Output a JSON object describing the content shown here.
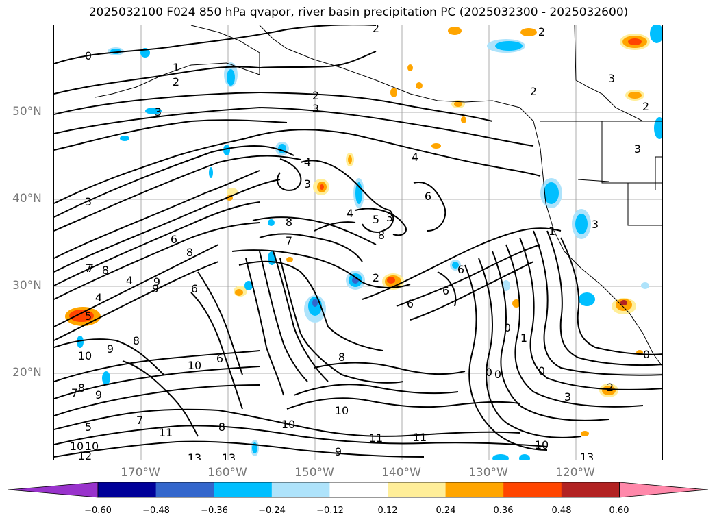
{
  "title": "2025032100 F024 850 hPa qvapor, river basin precipitation PC (2025032300 - 2025032600)",
  "lat_labels": [
    "50°N",
    "40°N",
    "30°N",
    "20°N"
  ],
  "lon_labels": [
    "170°W",
    "160°W",
    "150°W",
    "140°W",
    "130°W",
    "120°W"
  ],
  "colorbar": {
    "colors": [
      "#9933cc",
      "#000099",
      "#3366cc",
      "#00bfff",
      "#aee3fb",
      "#ffffff",
      "#ffee99",
      "#ffa500",
      "#ff4500",
      "#b22222",
      "#ff88aa"
    ],
    "ticks": [
      "−0.60",
      "−0.48",
      "−0.36",
      "−0.24",
      "−0.12",
      "0.12",
      "0.24",
      "0.36",
      "0.48",
      "0.60"
    ]
  },
  "contour_labels": [
    "0",
    "1",
    "2",
    "2",
    "3",
    "3",
    "3",
    "4",
    "4",
    "3",
    "6",
    "4",
    "5",
    "3",
    "8",
    "7",
    "8",
    "7",
    "8",
    "6",
    "4",
    "9",
    "6",
    "8",
    "2",
    "6",
    "6",
    "6",
    "0",
    "1",
    "0",
    "0",
    "0",
    "10",
    "9",
    "10",
    "8",
    "10",
    "8",
    "10",
    "11",
    "11",
    "11",
    "13",
    "13",
    "9",
    "12",
    "10",
    "5",
    "7",
    "8",
    "9",
    "7",
    "8",
    "7",
    "9",
    "3",
    "2",
    "2",
    "2",
    "3",
    "2",
    "3",
    "2",
    "0",
    "10",
    "13",
    "10",
    "6",
    "3",
    "5",
    "1",
    "4"
  ],
  "map_features": {
    "precip_positive_color": "#ffa500",
    "precip_negative_color": "#00bfff",
    "contour_color": "#000000",
    "grid_color": "#999999",
    "coastline_color": "#000000"
  }
}
